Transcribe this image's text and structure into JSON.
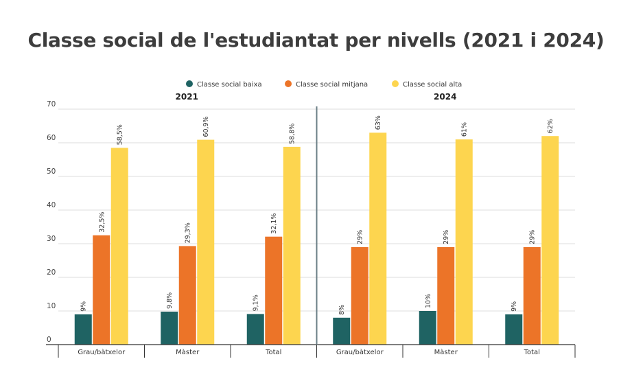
{
  "chart_data": {
    "type": "bar",
    "title": "Classe social de l'estudiantat per nivells (2021 i 2024)",
    "ylim": [
      0,
      70
    ],
    "yticks": [
      0,
      10,
      20,
      30,
      40,
      50,
      60,
      70
    ],
    "grid": true,
    "legend_position": "top",
    "series": [
      {
        "name": "Classe social baixa",
        "color": "#1f6363"
      },
      {
        "name": "Classe social mitjana",
        "color": "#ec7428"
      },
      {
        "name": "Classe social alta",
        "color": "#fdd54f"
      }
    ],
    "panels": [
      {
        "label": "2021",
        "categories": [
          "Grau/bàtxelor",
          "Màster",
          "Total"
        ],
        "values": [
          [
            9,
            32.5,
            58.5
          ],
          [
            9.8,
            29.3,
            60.9
          ],
          [
            9.1,
            32.1,
            58.8
          ]
        ],
        "labels": [
          [
            "9%",
            "32,5%",
            "58,5%"
          ],
          [
            "9,8%",
            "29,3%",
            "60,9%"
          ],
          [
            "9,1%",
            "32,1%",
            "58,8%"
          ]
        ]
      },
      {
        "label": "2024",
        "categories": [
          "Grau/bàtxelor",
          "Màster",
          "Total"
        ],
        "values": [
          [
            8,
            29,
            63
          ],
          [
            10,
            29,
            61
          ],
          [
            9,
            29,
            62
          ]
        ],
        "labels": [
          [
            "8%",
            "29%",
            "63%"
          ],
          [
            "10%",
            "29%",
            "61%"
          ],
          [
            "9%",
            "29%",
            "62%"
          ]
        ]
      }
    ]
  }
}
